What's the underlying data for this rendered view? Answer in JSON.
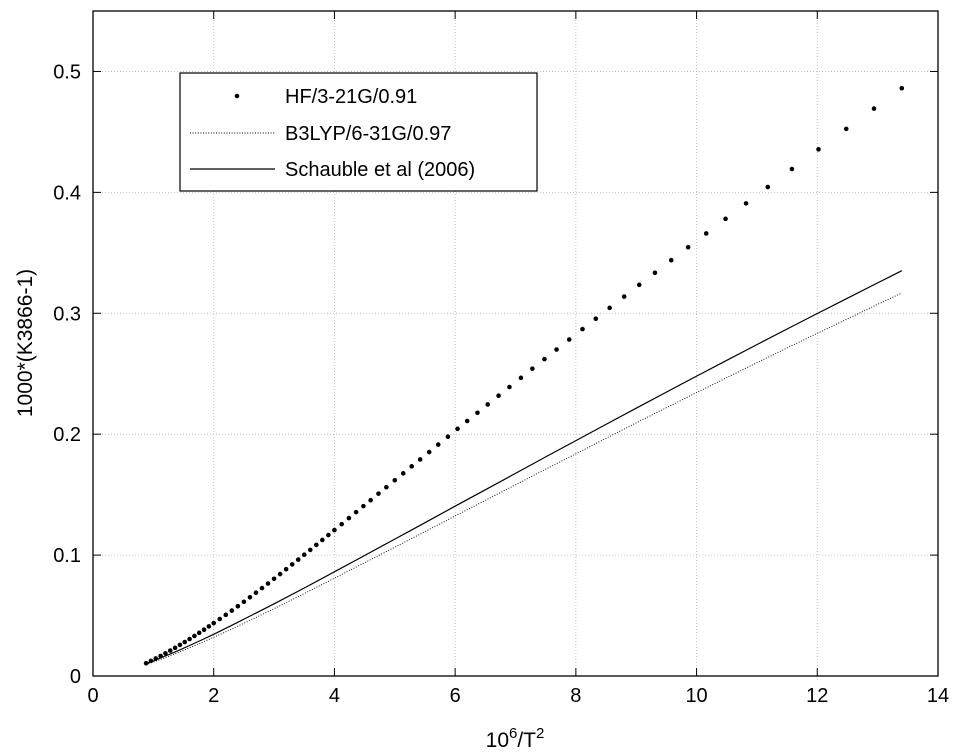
{
  "chart_data": {
    "type": "line",
    "title": "",
    "xlabel": {
      "base": "10",
      "base_sup": "6",
      "mid": "/T",
      "mid_sup": "2"
    },
    "ylabel": "1000*(K3866-1)",
    "xlim": [
      0,
      14
    ],
    "ylim": [
      0,
      0.55
    ],
    "xticks": [
      0,
      2,
      4,
      6,
      8,
      10,
      12,
      14
    ],
    "yticks": [
      0,
      0.1,
      0.2,
      0.3,
      0.4,
      0.5
    ],
    "xtick_labels": [
      "0",
      "2",
      "4",
      "6",
      "8",
      "10",
      "12",
      "14"
    ],
    "ytick_labels": [
      "0",
      "0.1",
      "0.2",
      "0.3",
      "0.4",
      "0.5"
    ],
    "grid": true,
    "legend_position": "top-left",
    "series": [
      {
        "name": "HF/3-21G/0.91",
        "style": "dots",
        "x": [
          0.88,
          0.96,
          1.04,
          1.12,
          1.2,
          1.28,
          1.36,
          1.44,
          1.52,
          1.6,
          1.68,
          1.76,
          1.84,
          1.92,
          2.0,
          2.1,
          2.2,
          2.3,
          2.4,
          2.5,
          2.6,
          2.7,
          2.8,
          2.9,
          3.0,
          3.1,
          3.2,
          3.3,
          3.4,
          3.5,
          3.6,
          3.7,
          3.8,
          3.9,
          4.0,
          4.12,
          4.24,
          4.36,
          4.48,
          4.6,
          4.73,
          4.86,
          5.0,
          5.14,
          5.28,
          5.42,
          5.57,
          5.72,
          5.88,
          6.04,
          6.2,
          6.37,
          6.54,
          6.72,
          6.9,
          7.09,
          7.28,
          7.48,
          7.68,
          7.89,
          8.11,
          8.33,
          8.56,
          8.8,
          9.05,
          9.31,
          9.58,
          9.86,
          10.16,
          10.48,
          10.82,
          11.18,
          11.58,
          12.02,
          12.48,
          12.94,
          13.4
        ],
        "y": [
          0.0105,
          0.0125,
          0.0145,
          0.0165,
          0.0187,
          0.021,
          0.0233,
          0.0257,
          0.0281,
          0.0306,
          0.0331,
          0.0357,
          0.0383,
          0.041,
          0.0437,
          0.0471,
          0.0506,
          0.0541,
          0.0577,
          0.0614,
          0.0651,
          0.0689,
          0.0727,
          0.0765,
          0.0804,
          0.0843,
          0.0883,
          0.0923,
          0.0963,
          0.1003,
          0.1043,
          0.1084,
          0.1125,
          0.1166,
          0.1207,
          0.1256,
          0.1306,
          0.1355,
          0.1405,
          0.1454,
          0.1508,
          0.1561,
          0.1619,
          0.1676,
          0.1734,
          0.1791,
          0.1852,
          0.1914,
          0.1979,
          0.2044,
          0.2109,
          0.2177,
          0.2246,
          0.2318,
          0.239,
          0.2466,
          0.2542,
          0.2621,
          0.27,
          0.2783,
          0.2869,
          0.2955,
          0.3045,
          0.3138,
          0.3235,
          0.3335,
          0.3439,
          0.3546,
          0.366,
          0.3781,
          0.3909,
          0.4044,
          0.4193,
          0.4356,
          0.4525,
          0.4693,
          0.4861
        ]
      },
      {
        "name": "B3LYP/6-31G/0.97",
        "style": "dotted",
        "x": [
          0.88,
          1.0,
          1.2,
          1.4,
          1.6,
          1.8,
          2.0,
          2.3,
          2.6,
          3.0,
          3.5,
          4.0,
          4.5,
          5.0,
          5.5,
          6.0,
          6.5,
          7.0,
          7.5,
          8.0,
          8.5,
          9.0,
          9.5,
          10.0,
          10.5,
          11.0,
          11.5,
          12.0,
          12.5,
          13.0,
          13.4
        ],
        "y": [
          0.0095,
          0.0115,
          0.0152,
          0.0192,
          0.0233,
          0.0276,
          0.032,
          0.0389,
          0.046,
          0.0557,
          0.0682,
          0.0809,
          0.0937,
          0.1065,
          0.1194,
          0.1323,
          0.1452,
          0.1581,
          0.171,
          0.1838,
          0.1966,
          0.2093,
          0.2219,
          0.2344,
          0.2468,
          0.2591,
          0.2713,
          0.2834,
          0.2954,
          0.3073,
          0.3168
        ]
      },
      {
        "name": "Schauble et al (2006)",
        "style": "solid",
        "x": [
          0.88,
          1.0,
          1.2,
          1.4,
          1.6,
          1.8,
          2.0,
          2.3,
          2.6,
          3.0,
          3.5,
          4.0,
          4.5,
          5.0,
          5.5,
          6.0,
          6.5,
          7.0,
          7.5,
          8.0,
          8.5,
          9.0,
          9.5,
          10.0,
          10.5,
          11.0,
          11.5,
          12.0,
          12.5,
          13.0,
          13.4
        ],
        "y": [
          0.0103,
          0.0124,
          0.0165,
          0.0208,
          0.0252,
          0.0298,
          0.0345,
          0.0419,
          0.0495,
          0.0597,
          0.0728,
          0.0862,
          0.0997,
          0.1132,
          0.1268,
          0.1404,
          0.154,
          0.1676,
          0.1812,
          0.1947,
          0.2081,
          0.2215,
          0.2348,
          0.248,
          0.2611,
          0.2741,
          0.287,
          0.2998,
          0.3125,
          0.3251,
          0.3352
        ]
      }
    ]
  }
}
